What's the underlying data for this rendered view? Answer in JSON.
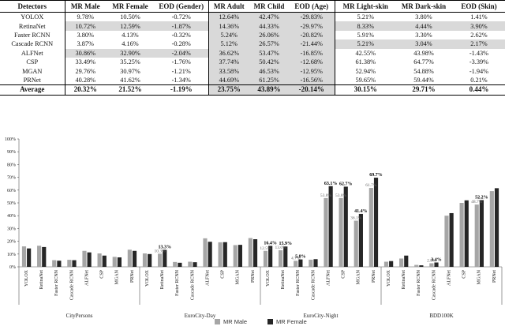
{
  "table": {
    "headers": [
      "Detectors",
      "MR Male",
      "MR Female",
      "EOD (Gender)",
      "MR Adult",
      "MR Child",
      "EOD (Age)",
      "MR Light-skin",
      "MR Dark-skin",
      "EOD (Skin)"
    ],
    "rows": [
      {
        "name": "YOLOX",
        "cells": [
          "9.78%",
          "10.50%",
          "-0.72%",
          "12.64%",
          "42.47%",
          "-29.83%",
          "5.21%",
          "3.80%",
          "1.41%"
        ]
      },
      {
        "name": "RetinaNet",
        "cells": [
          "10.72%",
          "12.59%",
          "-1.87%",
          "14.36%",
          "44.33%",
          "-29.97%",
          "8.33%",
          "4.44%",
          "3.90%"
        ]
      },
      {
        "name": "Faster RCNN",
        "cells": [
          "3.80%",
          "4.13%",
          "-0.32%",
          "5.24%",
          "26.06%",
          "-20.82%",
          "5.91%",
          "3.30%",
          "2.62%"
        ]
      },
      {
        "name": "Cascade RCNN",
        "cells": [
          "3.87%",
          "4.16%",
          "-0.28%",
          "5.12%",
          "26.57%",
          "-21.44%",
          "5.21%",
          "3.04%",
          "2.17%"
        ]
      },
      {
        "name": "ALFNet",
        "cells": [
          "30.86%",
          "32.90%",
          "-2.04%",
          "36.62%",
          "53.47%",
          "-16.85%",
          "42.55%",
          "43.98%",
          "-1.43%"
        ]
      },
      {
        "name": "CSP",
        "cells": [
          "33.49%",
          "35.25%",
          "-1.76%",
          "37.74%",
          "50.42%",
          "-12.68%",
          "61.38%",
          "64.77%",
          "-3.39%"
        ]
      },
      {
        "name": "MGAN",
        "cells": [
          "29.76%",
          "30.97%",
          "-1.21%",
          "33.58%",
          "46.53%",
          "-12.95%",
          "52.94%",
          "54.88%",
          "-1.94%"
        ]
      },
      {
        "name": "PRNet",
        "cells": [
          "40.28%",
          "41.62%",
          "-1.34%",
          "44.69%",
          "61.25%",
          "-16.56%",
          "59.65%",
          "59.44%",
          "0.21%"
        ]
      }
    ],
    "average": {
      "name": "Average",
      "cells": [
        "20.32%",
        "21.52%",
        "-1.19%",
        "23.75%",
        "43.89%",
        "-20.14%",
        "30.15%",
        "29.71%",
        "0.44%"
      ]
    }
  },
  "chart_data": {
    "type": "bar",
    "ylim": [
      0,
      100
    ],
    "yticks": [
      "0%",
      "10%",
      "20%",
      "30%",
      "40%",
      "50%",
      "60%",
      "70%",
      "80%",
      "90%",
      "100%"
    ],
    "colors": {
      "male": "#a6a6a6",
      "female": "#262626"
    },
    "legend": [
      "MR Male",
      "MR Female"
    ],
    "groups": [
      {
        "name": "CityPersons",
        "categories": [
          "YOLOX",
          "RetinaNet",
          "Faster RCNN",
          "Cascade RCNN",
          "ALFNet",
          "CSP",
          "MGAN",
          "PRNet"
        ],
        "male": [
          16.0,
          16.5,
          5.2,
          5.5,
          12.5,
          10.5,
          7.8,
          13.4
        ],
        "female": [
          14.4,
          15.5,
          4.8,
          5.2,
          11.3,
          8.8,
          7.4,
          12.5
        ],
        "labels": []
      },
      {
        "name": "EuroCity-Day",
        "categories": [
          "YOLOX",
          "RetinaNet",
          "Faster RCNN",
          "Cascade RCNN",
          "ALFNet",
          "CSP",
          "MGAN",
          "PRNet"
        ],
        "male": [
          10.5,
          10.3,
          3.8,
          4.0,
          22.3,
          19.2,
          17.0,
          22.5
        ],
        "female": [
          10.0,
          13.3,
          3.2,
          3.6,
          19.6,
          19.3,
          17.2,
          21.6
        ],
        "labels": [
          {
            "i": 1,
            "s": "male",
            "text": "10.3%"
          },
          {
            "i": 1,
            "s": "female",
            "text": "13.3%"
          }
        ]
      },
      {
        "name": "EuroCity-Night",
        "categories": [
          "YOLOX",
          "RetinaNet",
          "Faster RCNN",
          "Cascade RCNN",
          "ALFNet",
          "CSP",
          "MGAN",
          "PRNet"
        ],
        "male": [
          12.5,
          13.0,
          4.7,
          5.6,
          53.8,
          53.8,
          36.1,
          61.7
        ],
        "female": [
          16.4,
          15.9,
          5.8,
          6.0,
          63.1,
          62.7,
          41.4,
          69.7
        ],
        "labels": [
          {
            "i": 0,
            "s": "male",
            "text": "12.5%"
          },
          {
            "i": 0,
            "s": "female",
            "text": "16.4%"
          },
          {
            "i": 1,
            "s": "male",
            "text": "13.0%"
          },
          {
            "i": 1,
            "s": "female",
            "text": "15.9%"
          },
          {
            "i": 2,
            "s": "male",
            "text": "4.7%"
          },
          {
            "i": 2,
            "s": "female",
            "text": "5.8%"
          },
          {
            "i": 4,
            "s": "male",
            "text": "53.8%"
          },
          {
            "i": 4,
            "s": "female",
            "text": "63.1%"
          },
          {
            "i": 5,
            "s": "male",
            "text": "53.8%"
          },
          {
            "i": 5,
            "s": "female",
            "text": "62.7%"
          },
          {
            "i": 6,
            "s": "male",
            "text": "36.1%"
          },
          {
            "i": 6,
            "s": "female",
            "text": "41.4%"
          },
          {
            "i": 7,
            "s": "male",
            "text": "61.7%"
          },
          {
            "i": 7,
            "s": "female",
            "text": "69.7%"
          }
        ]
      },
      {
        "name": "BDD100K",
        "categories": [
          "YOLOX",
          "RetinaNet",
          "Faster RCNN",
          "Cascade RCNN",
          "ALFNet",
          "CSP",
          "MGAN",
          "PRNet"
        ],
        "male": [
          4.0,
          6.5,
          1.5,
          2.8,
          40.0,
          50.0,
          48.7,
          59.2
        ],
        "female": [
          4.5,
          8.8,
          1.2,
          3.4,
          42.0,
          52.0,
          52.2,
          61.5
        ],
        "labels": [
          {
            "i": 3,
            "s": "male",
            "text": "2.8%"
          },
          {
            "i": 3,
            "s": "female",
            "text": "3.4%"
          },
          {
            "i": 6,
            "s": "male",
            "text": "48.7%"
          },
          {
            "i": 6,
            "s": "female",
            "text": "52.2%"
          }
        ]
      }
    ]
  }
}
